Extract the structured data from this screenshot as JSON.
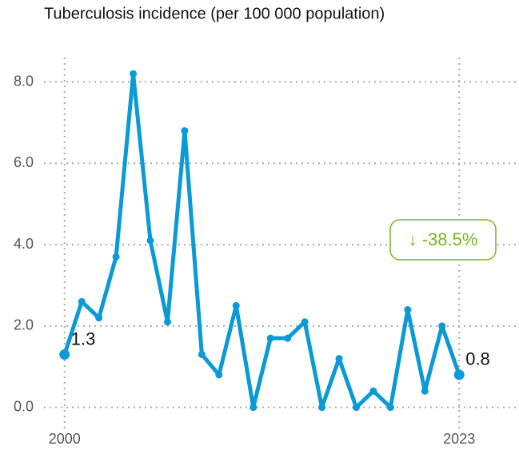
{
  "chart_data": {
    "type": "line",
    "title": "Tuberculosis incidence (per 100 000 population)",
    "x": [
      2000,
      2001,
      2002,
      2003,
      2004,
      2005,
      2006,
      2007,
      2008,
      2009,
      2010,
      2011,
      2012,
      2013,
      2014,
      2015,
      2016,
      2017,
      2018,
      2019,
      2020,
      2021,
      2022,
      2023
    ],
    "series": [
      {
        "color": "#0a9ad6",
        "values": [
          1.3,
          2.6,
          2.2,
          3.7,
          8.2,
          4.1,
          2.1,
          6.8,
          1.3,
          0.8,
          2.5,
          0,
          1.7,
          1.7,
          2.1,
          0,
          1.2,
          0,
          0.4,
          0,
          2.4,
          0.4,
          2.0,
          0.8
        ]
      }
    ],
    "xlim": [
      1998.8,
      2026.3
    ],
    "xticks": [
      2000,
      2023
    ],
    "ylim": [
      -0.4,
      8.6
    ],
    "yticks": [
      {
        "value": 0,
        "label": "0.0"
      },
      {
        "value": 2,
        "label": "2.0"
      },
      {
        "value": 4,
        "label": "4.0"
      },
      {
        "value": 6,
        "label": "6.0"
      },
      {
        "value": 8,
        "label": "8.0"
      }
    ],
    "grid": true,
    "annotation": "↓ -38.5%",
    "annotation_color": "#7ab51d"
  }
}
